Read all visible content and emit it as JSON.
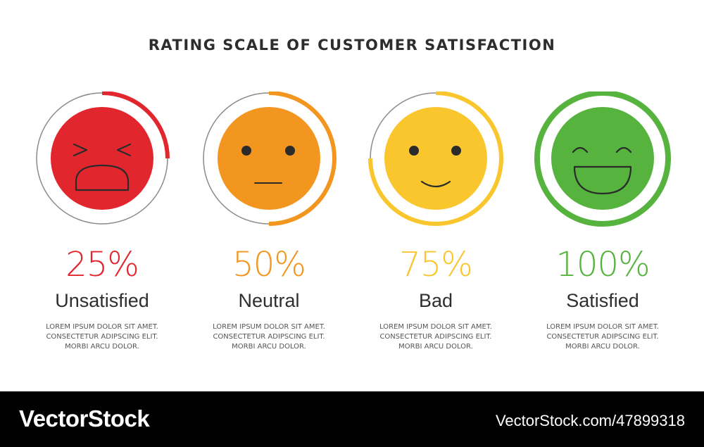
{
  "title": "RATING SCALE OF CUSTOMER SATISFACTION",
  "items": [
    {
      "percent": "25%",
      "level": 0.25,
      "label": "Unsatisfied",
      "face_icon": "tired-face-icon",
      "color": "#e1272d",
      "desc": [
        "LOREM IPSUM DOLOR SIT AMET.",
        "CONSECTETUR ADIPSCING ELIT.",
        "MORBI ARCU DOLOR."
      ]
    },
    {
      "percent": "50%",
      "level": 0.5,
      "label": "Neutral",
      "face_icon": "neutral-face-icon",
      "color": "#f3961f",
      "desc": [
        "LOREM IPSUM DOLOR SIT AMET.",
        "CONSECTETUR ADIPSCING ELIT.",
        "MORBI ARCU DOLOR."
      ]
    },
    {
      "percent": "75%",
      "level": 0.75,
      "label": "Bad",
      "face_icon": "slight-smile-face-icon",
      "color": "#fac62e",
      "desc": [
        "LOREM IPSUM DOLOR SIT AMET.",
        "CONSECTETUR ADIPSCING ELIT.",
        "MORBI ARCU DOLOR."
      ]
    },
    {
      "percent": "100%",
      "level": 1.0,
      "label": "Satisfied",
      "face_icon": "grinning-face-icon",
      "color": "#55b33e",
      "desc": [
        "LOREM IPSUM DOLOR SIT AMET.",
        "CONSECTETUR ADIPSCING ELIT.",
        "MORBI ARCU DOLOR."
      ]
    }
  ],
  "footer": {
    "brand": "VectorStock",
    "stock_id": "VectorStock.com/47899318"
  }
}
